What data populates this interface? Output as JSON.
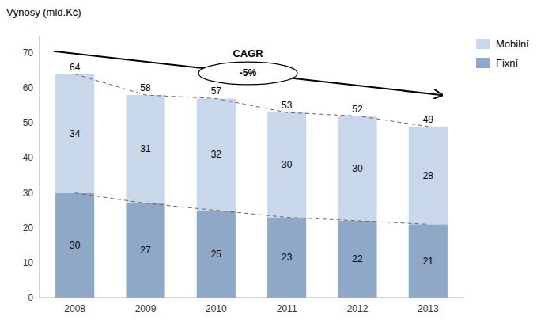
{
  "chart_data": {
    "type": "bar",
    "stacked": true,
    "ylabel": "Výnosy (mld.Kč)",
    "categories": [
      "2008",
      "2009",
      "2010",
      "2011",
      "2012",
      "2013"
    ],
    "series": [
      {
        "name": "Fixní",
        "color": "#8fa8c8",
        "values": [
          30,
          27,
          25,
          23,
          22,
          21
        ]
      },
      {
        "name": "Mobilní",
        "color": "#c8d8ea",
        "values": [
          34,
          31,
          32,
          30,
          30,
          28
        ]
      }
    ],
    "totals": [
      64,
      58,
      57,
      53,
      52,
      49
    ],
    "ylim": [
      0,
      75
    ],
    "yticks": [
      0,
      10,
      20,
      30,
      40,
      50,
      60,
      70
    ],
    "grid": false,
    "legend": "upper right",
    "data_labels": true,
    "annotations": [
      "CAGR",
      "-5%"
    ]
  }
}
